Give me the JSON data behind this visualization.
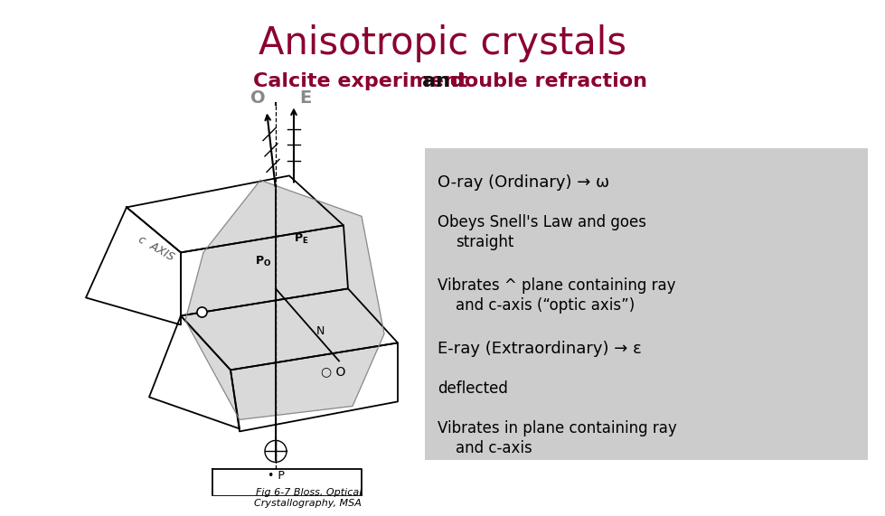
{
  "title": "Anisotropic crystals",
  "title_color": "#8B0030",
  "subtitle_calcite": "Calcite experiment ",
  "subtitle_and": "and ",
  "subtitle_double": "double refraction",
  "subtitle_color_main": "#8B0030",
  "subtitle_color_and": "#111111",
  "box_bg_color": "#CCCCCC",
  "oray_label": "O-ray (Ordinary) → ω",
  "obeys_line1": "Obeys Snell's Law and goes",
  "obeys_line2": "   straight",
  "vibrates1_line1": "Vibrates ^ plane containing ray",
  "vibrates1_line2": "   and c-axis (“optic axis”)",
  "eray_label": "E-ray (Extraordinary) → ε",
  "deflected": "deflected",
  "vibrates2_line1": "Vibrates in plane containing ray",
  "vibrates2_line2": "   and c-axis",
  "fig_caption": "Fig 6-7 Bloss, Optical\nCrystallography, MSA",
  "background_color": "#FFFFFF"
}
